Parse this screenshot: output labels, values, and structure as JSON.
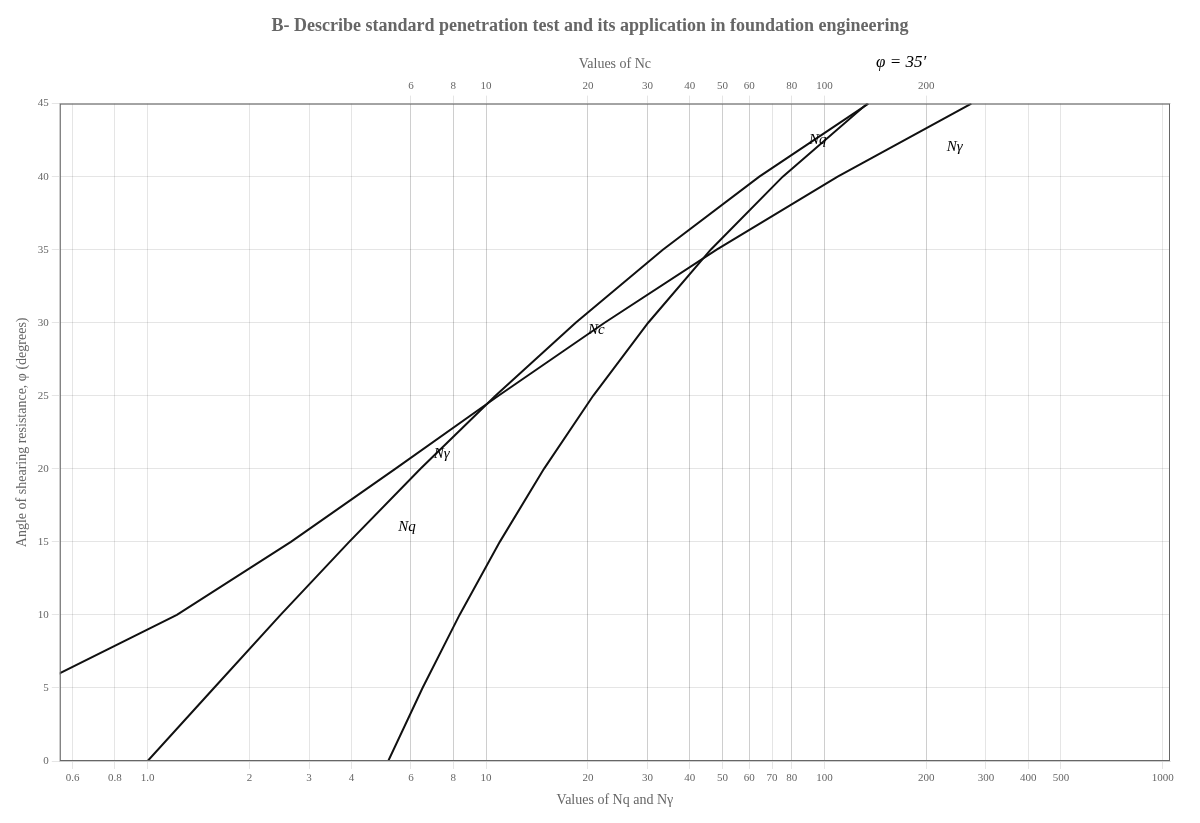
{
  "chart_data": {
    "type": "line",
    "title": "B- Describe standard penetration test and its application in foundation engineering",
    "xlabel": "Values of Nq and Nγ",
    "x2label": "Values of Nc",
    "ylabel": "Angle of shearing resistance, φ (degrees)",
    "log": "x",
    "grid": true,
    "xlim": [
      0.55,
      1050
    ],
    "xticks": [
      0.6,
      0.8,
      {
        "value": 1.0,
        "label": "1.0"
      },
      2,
      3,
      4,
      6,
      8,
      10,
      20,
      30,
      40,
      50,
      60,
      70,
      80,
      100,
      200,
      300,
      400,
      500,
      1000
    ],
    "x2lim": [
      0.55,
      1050
    ],
    "x2ticks": [
      6,
      8,
      10,
      20,
      30,
      40,
      50,
      60,
      80,
      100,
      200
    ],
    "ylim": [
      0,
      45
    ],
    "yticks": [
      0,
      5,
      10,
      15,
      20,
      25,
      30,
      35,
      40,
      45
    ],
    "series": [
      {
        "axis": "x2",
        "color": "#111111",
        "x": [
          5.14,
          6.49,
          8.35,
          10.98,
          14.83,
          20.72,
          30.14,
          46.12,
          75.31,
          133.87
        ],
        "values": [
          0,
          5,
          10,
          15,
          20,
          25,
          30,
          35,
          40,
          45
        ]
      },
      {
        "color": "#111111",
        "x": [
          1.0,
          1.57,
          2.47,
          3.94,
          6.4,
          10.66,
          18.4,
          33.3,
          64.2,
          134.87
        ],
        "values": [
          0,
          5,
          10,
          15,
          20,
          25,
          30,
          35,
          40,
          45
        ]
      },
      {
        "color": "#111111",
        "x": [
          0.45,
          1.22,
          2.65,
          5.39,
          10.88,
          22.4,
          48.03,
          109.41,
          271.76
        ],
        "values": [
          5,
          10,
          15,
          20,
          25,
          30,
          35,
          40,
          45
        ]
      }
    ],
    "annotations": [
      {
        "text": "Nc",
        "x": 20,
        "y": 29
      },
      {
        "text": "Nγ",
        "x": 7,
        "y": 20.5
      },
      {
        "text": "Nq",
        "x": 5.5,
        "y": 15.5
      },
      {
        "text": "Nq",
        "x": 90,
        "y": 42
      },
      {
        "text": "Nγ",
        "x": 230,
        "y": 41.5
      },
      {
        "text": "φ = 35′"
      }
    ]
  }
}
